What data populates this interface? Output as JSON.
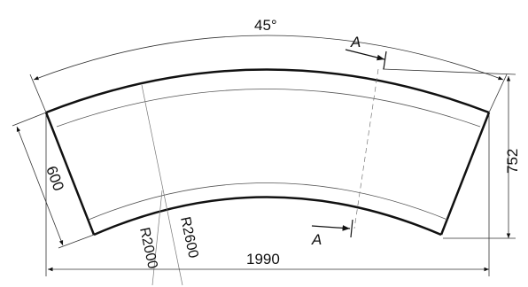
{
  "drawing": {
    "angle_label": "45°",
    "width_label": "1990",
    "height_label": "752",
    "depth_label": "600",
    "inner_radius_label": "R2000",
    "outer_radius_label": "R2600",
    "section_label_top": "A",
    "section_label_bottom": "A"
  }
}
